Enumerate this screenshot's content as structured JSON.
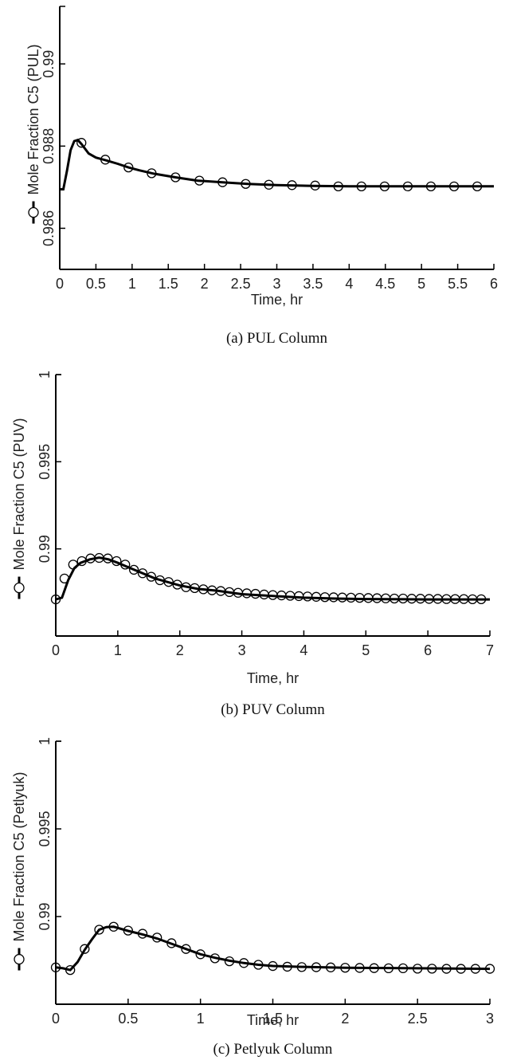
{
  "chart_data": [
    {
      "type": "line",
      "ylabel": "Mole Fraction C5 (PUL)",
      "xlabel": "Time, hr",
      "caption": "(a) PUL Column",
      "xlim": [
        0,
        6
      ],
      "ylim": [
        0.985,
        0.9914
      ],
      "xticks": [
        "0",
        "0.5",
        "1",
        "1.5",
        "2",
        "2.5",
        "3",
        "3.5",
        "4",
        "4.5",
        "5",
        "5.5",
        "6"
      ],
      "xtick_values": [
        0,
        0.5,
        1,
        1.5,
        2,
        2.5,
        3,
        3.5,
        4,
        4.5,
        5,
        5.5,
        6
      ],
      "yticks": [
        "0.986",
        "0.988",
        "0.99"
      ],
      "ytick_values": [
        0.986,
        0.988,
        0.99
      ],
      "series": [
        {
          "line": [
            [
              0,
              0.98695
            ],
            [
              0.05,
              0.98695
            ],
            [
              0.1,
              0.9874
            ],
            [
              0.15,
              0.9879
            ],
            [
              0.2,
              0.98812
            ],
            [
              0.25,
              0.98815
            ],
            [
              0.3,
              0.98805
            ],
            [
              0.4,
              0.98782
            ],
            [
              0.5,
              0.98772
            ],
            [
              0.65,
              0.98765
            ],
            [
              0.8,
              0.98757
            ],
            [
              0.95,
              0.98748
            ],
            [
              1.1,
              0.98741
            ],
            [
              1.3,
              0.98733
            ],
            [
              1.6,
              0.98724
            ],
            [
              1.9,
              0.98716
            ],
            [
              2.25,
              0.98712
            ],
            [
              2.6,
              0.98708
            ],
            [
              3,
              0.98705
            ],
            [
              3.5,
              0.98703
            ],
            [
              4,
              0.98702
            ],
            [
              5,
              0.98702
            ],
            [
              6,
              0.98702
            ]
          ],
          "markers": [
            [
              0.3,
              0.98808
            ],
            [
              0.63,
              0.98767
            ],
            [
              0.95,
              0.98748
            ],
            [
              1.27,
              0.98734
            ],
            [
              1.6,
              0.98724
            ],
            [
              1.93,
              0.98716
            ],
            [
              2.25,
              0.98712
            ],
            [
              2.57,
              0.98708
            ],
            [
              2.89,
              0.98706
            ],
            [
              3.21,
              0.98705
            ],
            [
              3.53,
              0.98704
            ],
            [
              3.85,
              0.98702
            ],
            [
              4.17,
              0.98702
            ],
            [
              4.49,
              0.98702
            ],
            [
              4.81,
              0.98702
            ],
            [
              5.13,
              0.98702
            ],
            [
              5.45,
              0.98702
            ],
            [
              5.77,
              0.98702
            ]
          ]
        }
      ]
    },
    {
      "type": "line",
      "ylabel": "Mole Fraction C5 (PUV)",
      "xlabel": "Time, hr",
      "caption": "(b) PUV Column",
      "xlim": [
        0,
        7
      ],
      "ylim": [
        0.985,
        1.0
      ],
      "xticks": [
        "0",
        "1",
        "2",
        "3",
        "4",
        "5",
        "6",
        "7"
      ],
      "xtick_values": [
        0,
        1,
        2,
        3,
        4,
        5,
        6,
        7
      ],
      "yticks": [
        "0.99",
        "0.995",
        "1"
      ],
      "ytick_values": [
        0.99,
        0.995,
        1.0
      ],
      "series": [
        {
          "line": [
            [
              0,
              0.9871
            ],
            [
              0.1,
              0.9872
            ],
            [
              0.2,
              0.9882
            ],
            [
              0.3,
              0.9889
            ],
            [
              0.4,
              0.9892
            ],
            [
              0.55,
              0.9894
            ],
            [
              0.7,
              0.9895
            ],
            [
              0.85,
              0.9894
            ],
            [
              1,
              0.9892
            ],
            [
              1.2,
              0.9889
            ],
            [
              1.4,
              0.9886
            ],
            [
              1.6,
              0.9883
            ],
            [
              1.8,
              0.9881
            ],
            [
              2,
              0.9879
            ],
            [
              2.3,
              0.9877
            ],
            [
              2.6,
              0.9876
            ],
            [
              3,
              0.9874
            ],
            [
              3.5,
              0.9873
            ],
            [
              4,
              0.9872
            ],
            [
              4.5,
              0.98715
            ],
            [
              5,
              0.98712
            ],
            [
              6,
              0.9871
            ],
            [
              7,
              0.9871
            ]
          ],
          "markers": [
            [
              0,
              0.9871
            ],
            [
              0.14,
              0.9883
            ],
            [
              0.28,
              0.9891
            ],
            [
              0.42,
              0.9893
            ],
            [
              0.56,
              0.98945
            ],
            [
              0.7,
              0.98948
            ],
            [
              0.84,
              0.98945
            ],
            [
              0.98,
              0.9893
            ],
            [
              1.12,
              0.9891
            ],
            [
              1.26,
              0.9888
            ],
            [
              1.4,
              0.9886
            ],
            [
              1.54,
              0.9884
            ],
            [
              1.68,
              0.9882
            ],
            [
              1.82,
              0.9881
            ],
            [
              1.96,
              0.98795
            ],
            [
              2.1,
              0.9878
            ],
            [
              2.24,
              0.98775
            ],
            [
              2.38,
              0.98768
            ],
            [
              2.52,
              0.98762
            ],
            [
              2.66,
              0.98758
            ],
            [
              2.8,
              0.98752
            ],
            [
              2.94,
              0.98748
            ],
            [
              3.08,
              0.98745
            ],
            [
              3.22,
              0.98742
            ],
            [
              3.36,
              0.98738
            ],
            [
              3.5,
              0.98735
            ],
            [
              3.64,
              0.98733
            ],
            [
              3.78,
              0.98731
            ],
            [
              3.92,
              0.98729
            ],
            [
              4.06,
              0.98727
            ],
            [
              4.2,
              0.98725
            ],
            [
              4.34,
              0.98723
            ],
            [
              4.48,
              0.98722
            ],
            [
              4.62,
              0.98721
            ],
            [
              4.76,
              0.9872
            ],
            [
              4.9,
              0.98719
            ],
            [
              5.04,
              0.98718
            ],
            [
              5.18,
              0.98717
            ],
            [
              5.32,
              0.98716
            ],
            [
              5.46,
              0.98715
            ],
            [
              5.6,
              0.98715
            ],
            [
              5.74,
              0.98714
            ],
            [
              5.88,
              0.98714
            ],
            [
              6.02,
              0.98713
            ],
            [
              6.16,
              0.98713
            ],
            [
              6.3,
              0.98712
            ],
            [
              6.44,
              0.98712
            ],
            [
              6.58,
              0.98712
            ],
            [
              6.72,
              0.98711
            ],
            [
              6.86,
              0.98711
            ]
          ]
        }
      ]
    },
    {
      "type": "line",
      "ylabel": "Mole Fraction C5 (Petlyuk)",
      "xlabel": "Time, hr",
      "caption": "(c) Petlyuk Column",
      "xlim": [
        0,
        3
      ],
      "ylim": [
        0.985,
        1.0
      ],
      "xticks": [
        "0",
        "0.5",
        "1",
        "1.5",
        "2",
        "2.5",
        "3"
      ],
      "xtick_values": [
        0,
        0.5,
        1,
        1.5,
        2,
        2.5,
        3
      ],
      "yticks": [
        "0.99",
        "0.995",
        "1"
      ],
      "ytick_values": [
        0.99,
        0.995,
        1.0
      ],
      "series": [
        {
          "line": [
            [
              0,
              0.9871
            ],
            [
              0.05,
              0.98705
            ],
            [
              0.1,
              0.98695
            ],
            [
              0.15,
              0.9874
            ],
            [
              0.2,
              0.9881
            ],
            [
              0.25,
              0.9887
            ],
            [
              0.3,
              0.98925
            ],
            [
              0.35,
              0.9894
            ],
            [
              0.4,
              0.98942
            ],
            [
              0.5,
              0.98918
            ],
            [
              0.6,
              0.98898
            ],
            [
              0.7,
              0.98875
            ],
            [
              0.8,
              0.98845
            ],
            [
              0.9,
              0.98815
            ],
            [
              1,
              0.98785
            ],
            [
              1.1,
              0.98765
            ],
            [
              1.2,
              0.98748
            ],
            [
              1.3,
              0.98735
            ],
            [
              1.4,
              0.98725
            ],
            [
              1.5,
              0.98718
            ],
            [
              1.7,
              0.98713
            ],
            [
              2,
              0.98708
            ],
            [
              2.5,
              0.98705
            ],
            [
              3,
              0.98702
            ]
          ],
          "markers": [
            [
              0,
              0.9871
            ],
            [
              0.1,
              0.98695
            ],
            [
              0.2,
              0.98815
            ],
            [
              0.3,
              0.98925
            ],
            [
              0.4,
              0.98942
            ],
            [
              0.5,
              0.9892
            ],
            [
              0.6,
              0.98902
            ],
            [
              0.7,
              0.9888
            ],
            [
              0.8,
              0.98848
            ],
            [
              0.9,
              0.98815
            ],
            [
              1,
              0.98785
            ],
            [
              1.1,
              0.98762
            ],
            [
              1.2,
              0.98745
            ],
            [
              1.3,
              0.98735
            ],
            [
              1.4,
              0.98725
            ],
            [
              1.5,
              0.98718
            ],
            [
              1.6,
              0.98714
            ],
            [
              1.7,
              0.98712
            ],
            [
              1.8,
              0.98711
            ],
            [
              1.9,
              0.9871
            ],
            [
              2,
              0.98708
            ],
            [
              2.1,
              0.98707
            ],
            [
              2.2,
              0.98706
            ],
            [
              2.3,
              0.98705
            ],
            [
              2.4,
              0.98705
            ],
            [
              2.5,
              0.98703
            ],
            [
              2.6,
              0.98703
            ],
            [
              2.7,
              0.98702
            ],
            [
              2.8,
              0.98702
            ],
            [
              2.9,
              0.98702
            ],
            [
              3,
              0.98702
            ]
          ]
        }
      ]
    }
  ]
}
